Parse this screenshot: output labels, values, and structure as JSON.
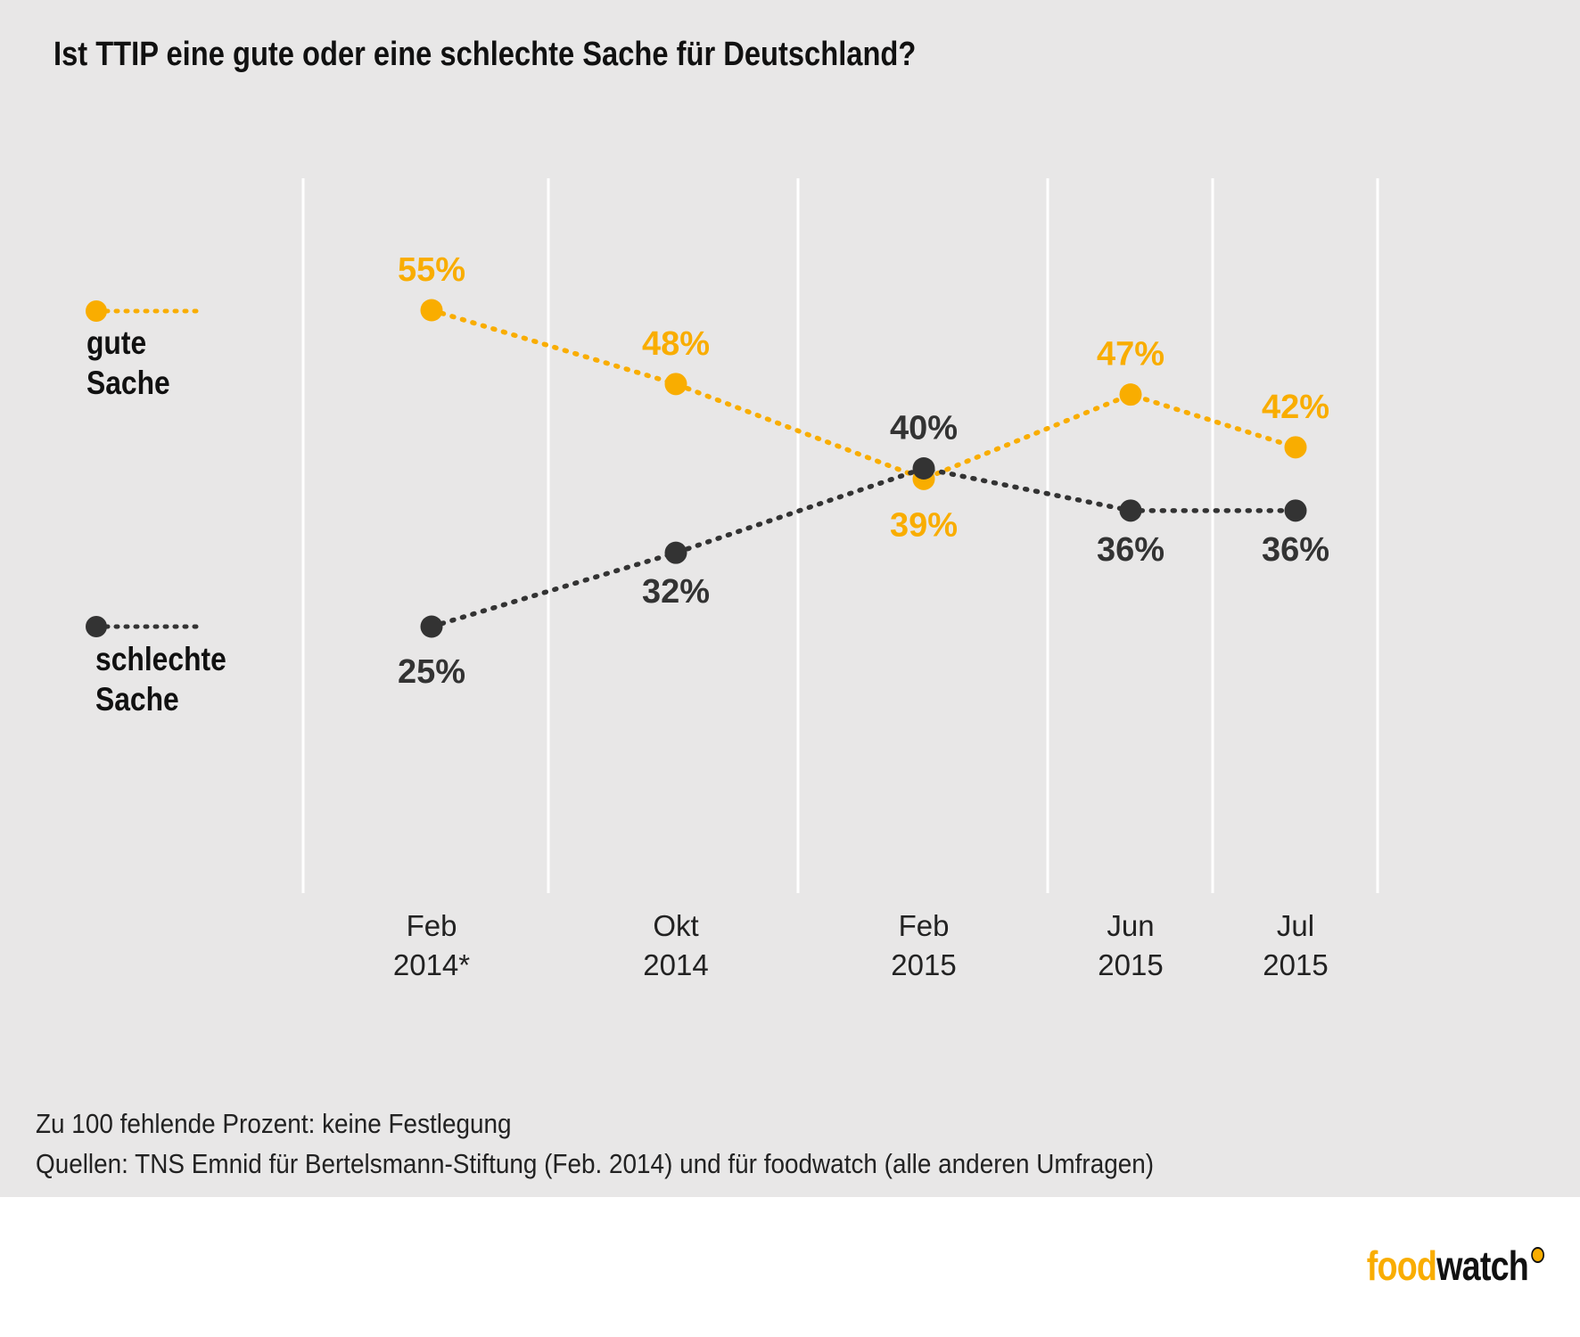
{
  "title": "Ist TTIP eine gute oder eine schlechte Sache für Deutschland?",
  "colors": {
    "good": "#f9ad00",
    "bad": "#333333",
    "background": "#e8e7e7",
    "gridline": "#ffffff"
  },
  "legend": {
    "good_line1": "gute",
    "good_line2": "Sache",
    "bad_line1": "schlechte",
    "bad_line2": "Sache"
  },
  "chart_data": {
    "type": "line",
    "x": [
      "Feb 2014*",
      "Okt 2014",
      "Feb 2015",
      "Jun 2015",
      "Jul 2015"
    ],
    "x_tick_lines": [
      [
        "Feb",
        "2014*"
      ],
      [
        "Okt",
        "2014"
      ],
      [
        "Feb",
        "2015"
      ],
      [
        "Jun",
        "2015"
      ],
      [
        "Jul",
        "2015"
      ]
    ],
    "series": [
      {
        "name": "gute Sache",
        "values": [
          55,
          48,
          39,
          47,
          42
        ],
        "labels": [
          "55%",
          "48%",
          "39%",
          "47%",
          "42%"
        ]
      },
      {
        "name": "schlechte Sache",
        "values": [
          25,
          32,
          40,
          36,
          36
        ],
        "labels": [
          "25%",
          "32%",
          "40%",
          "36%",
          "36%"
        ]
      }
    ],
    "ylim": [
      10,
      70
    ],
    "grid": true,
    "legend_position": "left"
  },
  "footnotes": [
    "Zu 100 fehlende Prozent: keine Festlegung",
    "Quellen: TNS Emnid für Bertelsmann-Stiftung (Feb. 2014) und für foodwatch (alle anderen Umfragen)"
  ],
  "logo": {
    "part1": "food",
    "part2": "watch"
  }
}
